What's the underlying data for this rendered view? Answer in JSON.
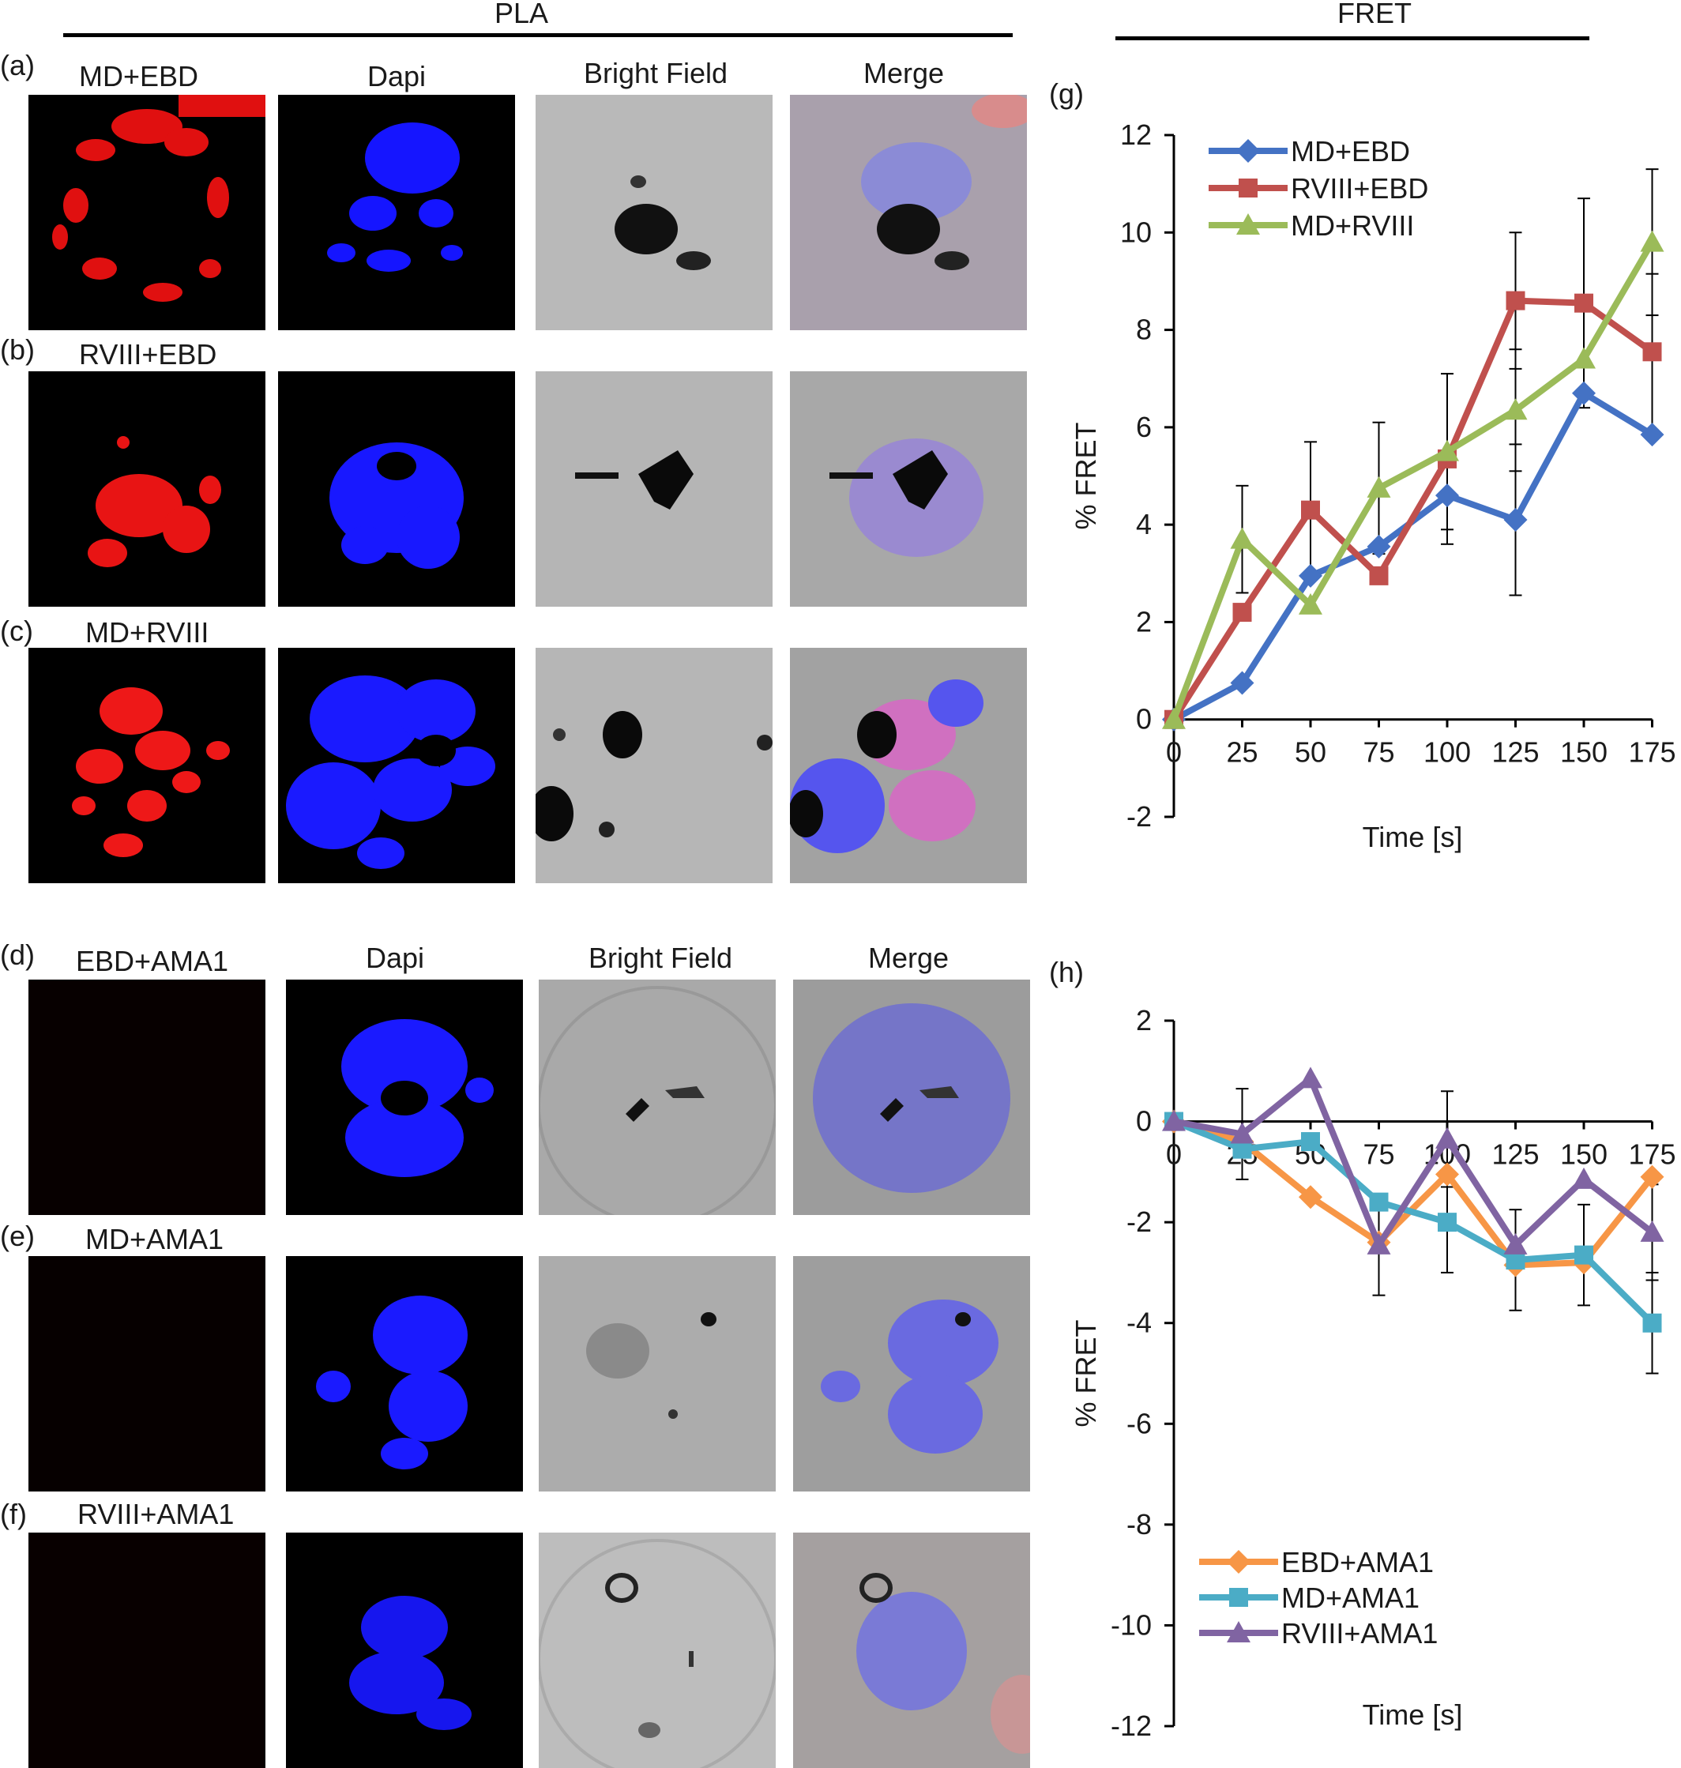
{
  "sections": {
    "pla": "PLA",
    "fret": "FRET"
  },
  "panel_letters": [
    "(a)",
    "(b)",
    "(c)",
    "(d)",
    "(e)",
    "(f)",
    "(g)",
    "(h)"
  ],
  "row_labels": [
    "MD+EBD",
    "RVIII+EBD",
    "MD+RVIII",
    "EBD+AMA1",
    "MD+AMA1",
    "RVIII+AMA1"
  ],
  "columns_top": [
    "Dapi",
    "Bright Field",
    "Merge"
  ],
  "columns_bottom": [
    "Dapi",
    "Bright Field",
    "Merge"
  ],
  "colors": {
    "red_channel": "#ff1a1a",
    "dapi_channel": "#1a1aff",
    "blue": "#4472c4",
    "red": "#c0504d",
    "green": "#9bbb59",
    "orange": "#f79646",
    "cyan": "#4bacc6",
    "purple": "#8064a2"
  },
  "chart_data": [
    {
      "type": "line",
      "panel": "(g)",
      "x": [
        0,
        25,
        50,
        75,
        100,
        125,
        150,
        175
      ],
      "ylabel": "% FRET",
      "xlabel": "Time [s]",
      "ylim": [
        -2,
        12
      ],
      "yticks": [
        -2,
        0,
        2,
        4,
        6,
        8,
        10,
        12
      ],
      "legend_position": "top-left",
      "series": [
        {
          "name": "MD+EBD",
          "color": "#4472c4",
          "marker": "diamond",
          "values": [
            0,
            0.75,
            2.95,
            3.55,
            4.6,
            4.1,
            6.7,
            5.85
          ],
          "err": [
            0,
            0,
            0,
            0,
            0,
            1.55,
            0,
            0
          ]
        },
        {
          "name": "RVIII+EBD",
          "color": "#c0504d",
          "marker": "square",
          "values": [
            0,
            2.2,
            4.3,
            2.95,
            5.35,
            8.6,
            8.55,
            7.55
          ],
          "err": [
            0,
            0,
            1.4,
            0,
            1.75,
            1.4,
            2.15,
            1.6
          ]
        },
        {
          "name": "MD+RVIII",
          "color": "#9bbb59",
          "marker": "triangle",
          "values": [
            0,
            3.7,
            2.35,
            4.75,
            5.5,
            6.35,
            7.4,
            9.8
          ],
          "err": [
            0,
            1.1,
            0,
            1.35,
            1.6,
            1.25,
            0,
            1.5
          ]
        }
      ]
    },
    {
      "type": "line",
      "panel": "(h)",
      "x": [
        0,
        25,
        50,
        75,
        100,
        125,
        150,
        175
      ],
      "ylabel": "% FRET",
      "xlabel": "Time [s]",
      "ylim": [
        -12,
        2
      ],
      "yticks": [
        -12,
        -10,
        -8,
        -6,
        -4,
        -2,
        0,
        2
      ],
      "legend_position": "bottom-left",
      "series": [
        {
          "name": "EBD+AMA1",
          "color": "#f79646",
          "marker": "diamond",
          "values": [
            0,
            -0.4,
            -1.5,
            -2.4,
            -1.05,
            -2.85,
            -2.8,
            -1.1
          ],
          "err": [
            0,
            0,
            0,
            0,
            0,
            0,
            0,
            0
          ]
        },
        {
          "name": "MD+AMA1",
          "color": "#4bacc6",
          "marker": "square",
          "values": [
            0,
            -0.55,
            -0.4,
            -1.6,
            -2.0,
            -2.75,
            -2.65,
            -4.0
          ],
          "err": [
            0,
            0,
            0,
            0,
            1.0,
            1.0,
            1.0,
            1.0
          ]
        },
        {
          "name": "RVIII+AMA1",
          "color": "#8064a2",
          "marker": "triangle",
          "values": [
            0,
            -0.25,
            0.85,
            -2.45,
            -0.35,
            -2.45,
            -1.15,
            -2.2
          ],
          "err": [
            0,
            0.9,
            0,
            1.0,
            0.95,
            0,
            0,
            0.95
          ]
        }
      ]
    }
  ]
}
